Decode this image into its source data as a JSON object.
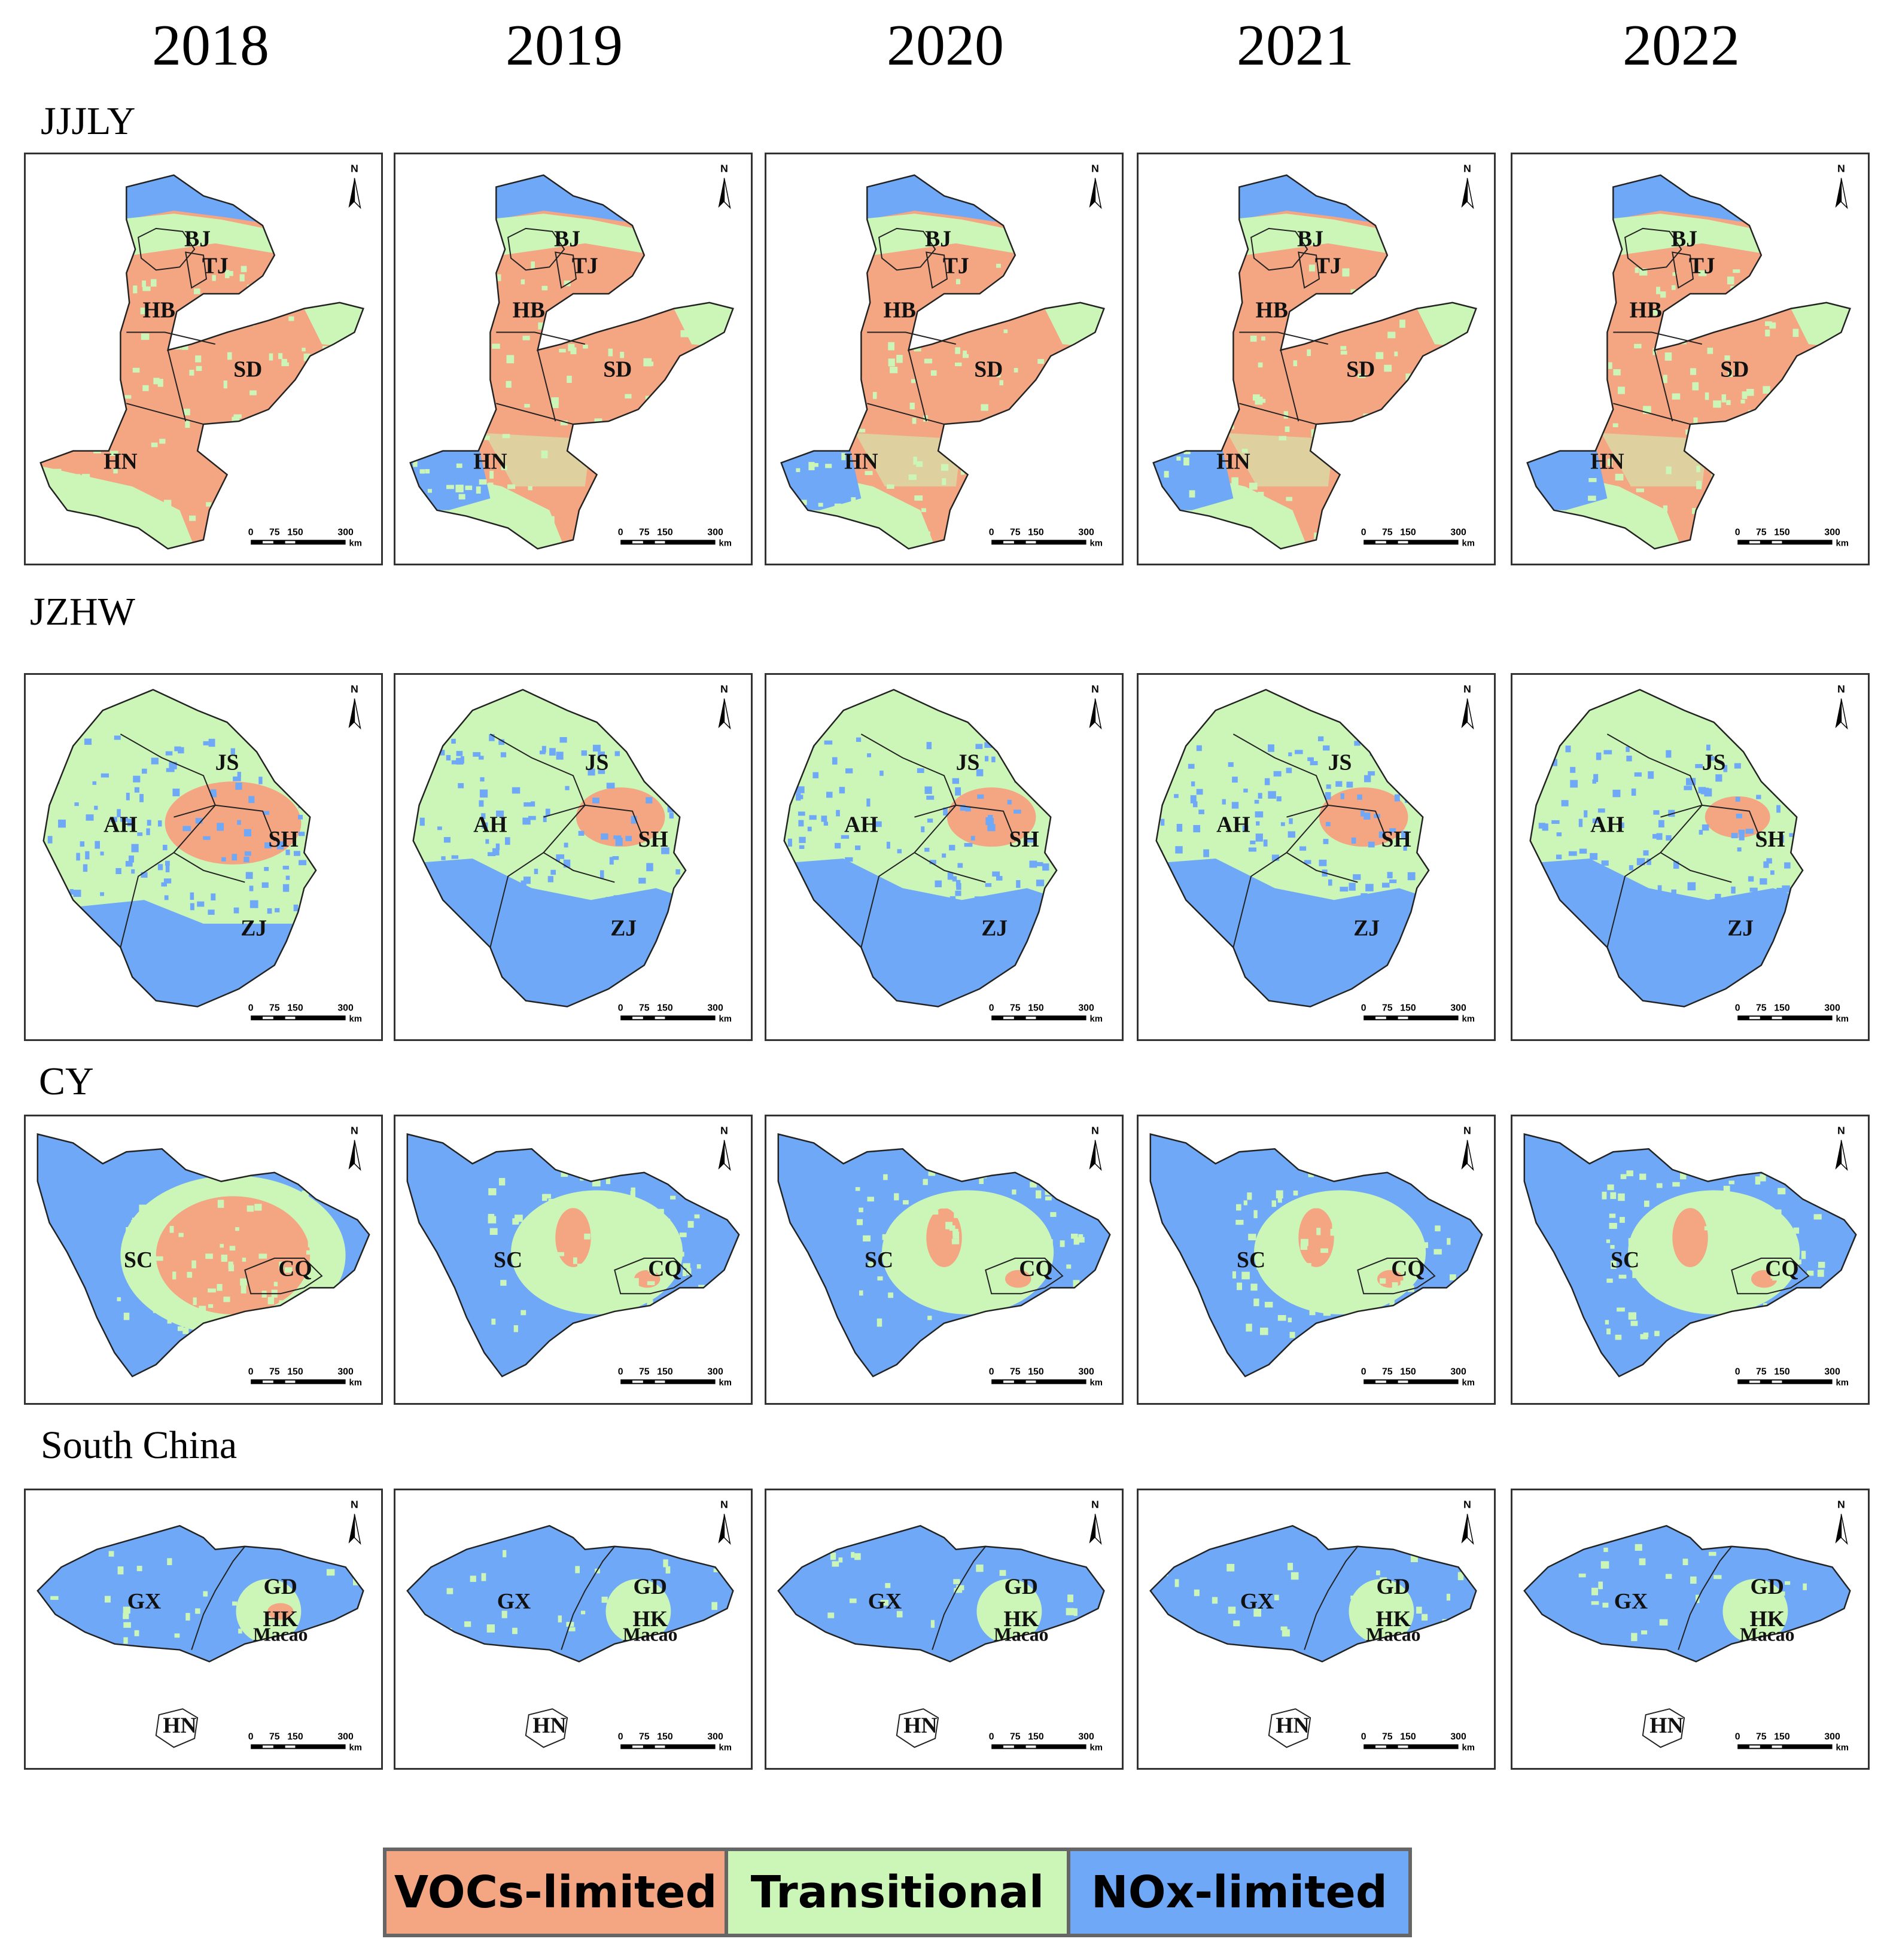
{
  "years": [
    "2018",
    "2019",
    "2020",
    "2021",
    "2022"
  ],
  "colors": {
    "vocs": "#f4a582",
    "transitional": "#ccf5b8",
    "nox": "#6fa8f7"
  },
  "north_arrow_label": "N",
  "scale_bar": {
    "ticks": [
      "0",
      "75",
      "150",
      "300"
    ],
    "unit": "km"
  },
  "regions": [
    {
      "name": "JJJLY",
      "labels": [
        "BJ",
        "TJ",
        "HB",
        "SD",
        "HN"
      ],
      "dominant_by_year": [
        "VOCs-limited",
        "VOCs-limited",
        "VOCs-limited",
        "VOCs-limited",
        "VOCs-limited"
      ]
    },
    {
      "name": "JZHW",
      "labels": [
        "JS",
        "AH",
        "SH",
        "ZJ"
      ],
      "dominant_by_year": [
        "Transitional",
        "Transitional",
        "Transitional",
        "Transitional",
        "Transitional"
      ]
    },
    {
      "name": "CY",
      "labels": [
        "SC",
        "CQ"
      ],
      "dominant_by_year": [
        "NOx-limited",
        "NOx-limited",
        "NOx-limited",
        "NOx-limited",
        "NOx-limited"
      ]
    },
    {
      "name": "South China",
      "labels": [
        "GX",
        "GD",
        "HK",
        "Macao",
        "HN"
      ],
      "dominant_by_year": [
        "NOx-limited",
        "NOx-limited",
        "NOx-limited",
        "NOx-limited",
        "NOx-limited"
      ]
    }
  ],
  "legend": [
    {
      "label": "VOCs-limited",
      "color": "#f4a582"
    },
    {
      "label": "Transitional",
      "color": "#ccf5b8"
    },
    {
      "label": "NOx-limited",
      "color": "#6fa8f7"
    }
  ]
}
